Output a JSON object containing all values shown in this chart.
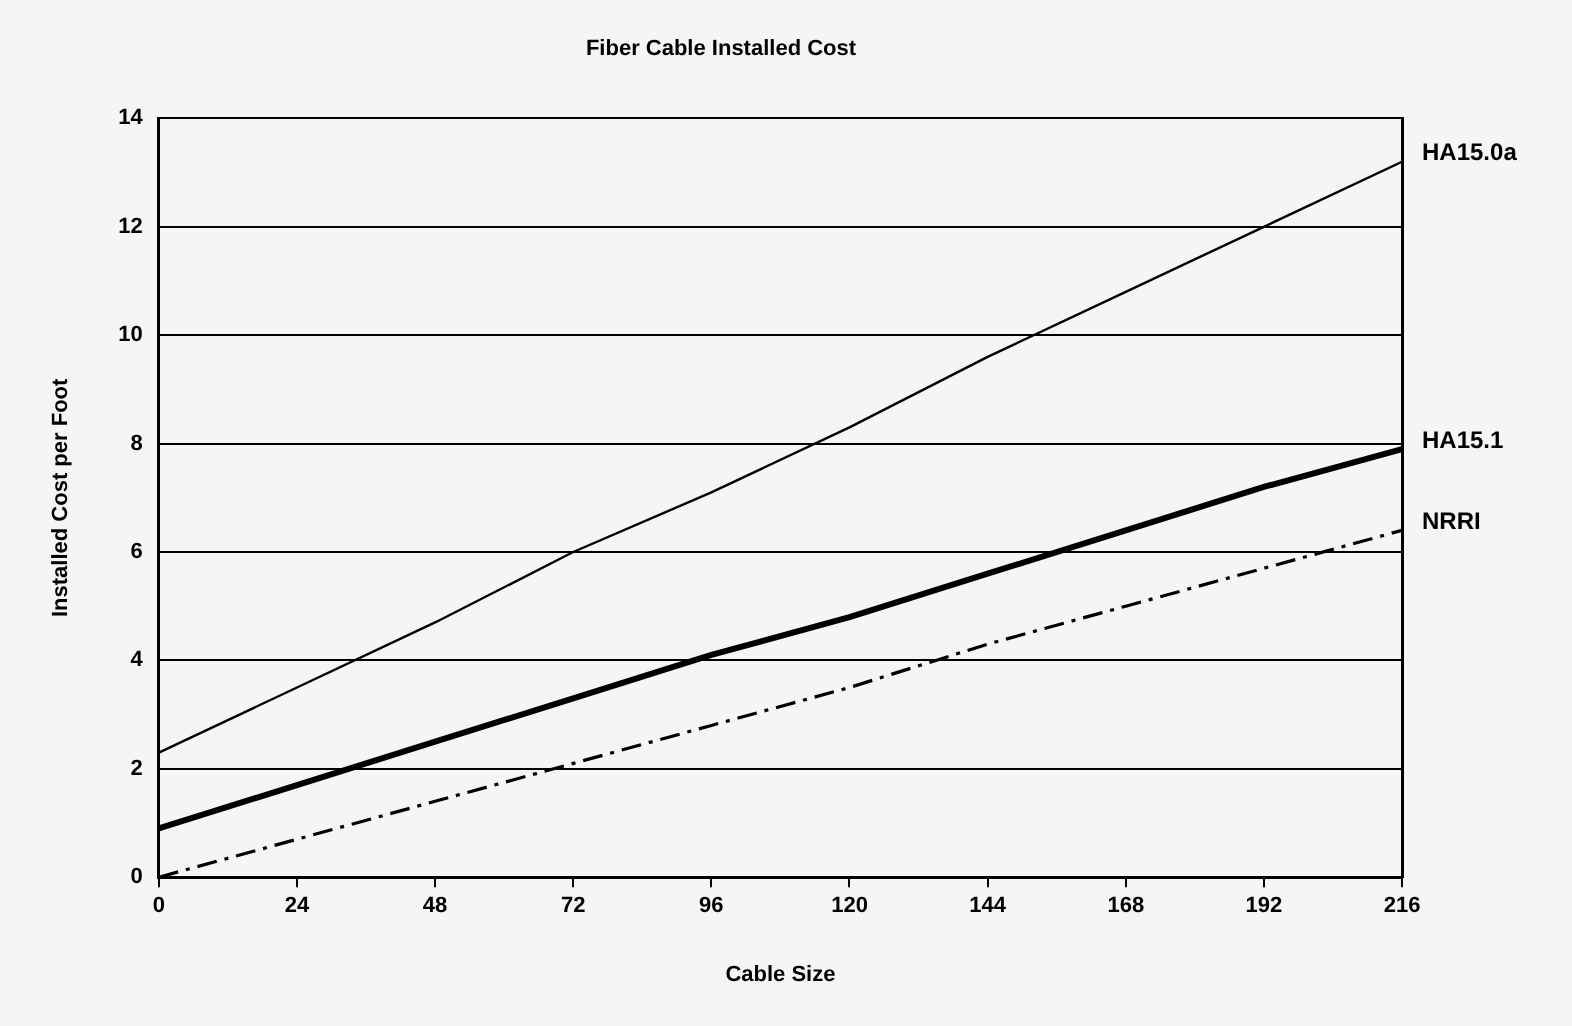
{
  "chart_data": {
    "type": "line",
    "title": "Fiber Cable Installed Cost",
    "xlabel": "Cable Size",
    "ylabel": "Installed Cost per Foot",
    "x": [
      0,
      24,
      48,
      72,
      96,
      120,
      144,
      168,
      192,
      216
    ],
    "xlim": [
      0,
      216
    ],
    "xticks": [
      0,
      24,
      48,
      72,
      96,
      120,
      144,
      168,
      192,
      216
    ],
    "ylim": [
      0,
      14
    ],
    "yticks": [
      0,
      2,
      4,
      6,
      8,
      10,
      12,
      14
    ],
    "grid": "y",
    "legend": false,
    "marker": "none",
    "series": [
      {
        "name": "HA15.0a",
        "color": "#000000",
        "line_style": "solid",
        "values": [
          2.3,
          3.5,
          4.7,
          6.0,
          7.1,
          8.3,
          9.6,
          10.8,
          12.0,
          13.2
        ]
      },
      {
        "name": "HA15.1",
        "color": "#000000",
        "line_style": "solid",
        "values": [
          0.9,
          1.7,
          2.5,
          3.3,
          4.1,
          4.8,
          5.6,
          6.4,
          7.2,
          7.9
        ]
      },
      {
        "name": "NRRI",
        "color": "#000000",
        "line_style": "dashed",
        "values": [
          0,
          0.7,
          1.4,
          2.1,
          2.8,
          3.5,
          4.3,
          5.0,
          5.7,
          6.4
        ]
      }
    ]
  }
}
